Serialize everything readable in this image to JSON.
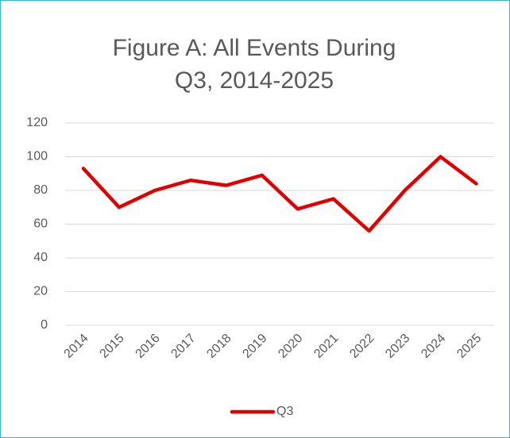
{
  "chart_data": {
    "type": "line",
    "title": "Figure A: All Events During Q3, 2014-2025",
    "categories": [
      "2014",
      "2015",
      "2016",
      "2017",
      "2018",
      "2019",
      "2020",
      "2021",
      "2022",
      "2023",
      "2024",
      "2025"
    ],
    "series": [
      {
        "name": "Q3",
        "color": "#e00000",
        "values": [
          93,
          70,
          80,
          86,
          83,
          89,
          69,
          75,
          56,
          80,
          100,
          84
        ]
      }
    ],
    "ylim": [
      0,
      120
    ],
    "yticks": [
      0,
      20,
      40,
      60,
      80,
      100,
      120
    ],
    "grid": true,
    "legend": "bottom"
  }
}
